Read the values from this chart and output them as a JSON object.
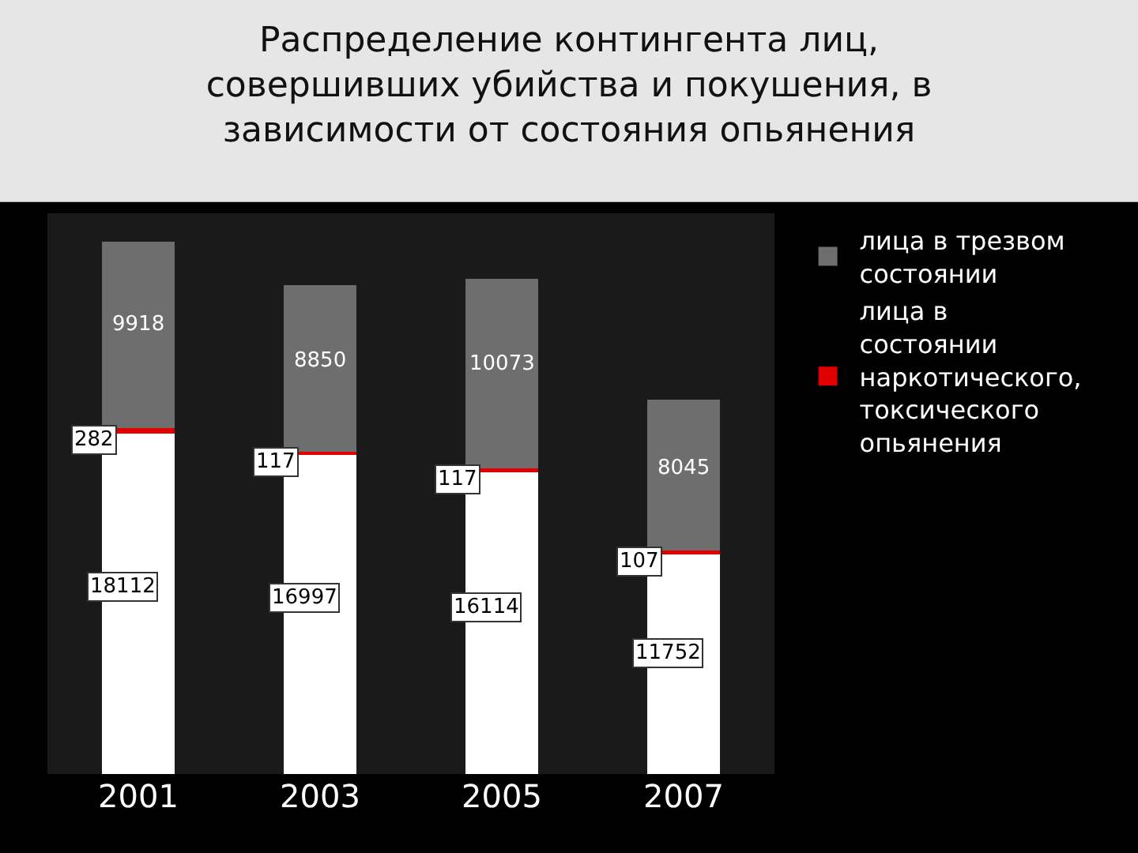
{
  "chart_data": {
    "type": "bar",
    "title": "Распределение контингента лиц, совершивших убийства и покушения, в зависимости от состояния опьянения",
    "categories": [
      "2001",
      "2003",
      "2005",
      "2007"
    ],
    "stacked": true,
    "data_labels": true,
    "tick_labels": "x",
    "legend": "right",
    "series": [
      {
        "color": "#ffffff",
        "values": [
          18112,
          16997,
          16114,
          11752
        ]
      },
      {
        "name": "лица в состоянии наркотического, токсического опьянения",
        "color": "#e00000",
        "values": [
          282,
          117,
          117,
          107
        ]
      },
      {
        "name": "лица в трезвом состоянии",
        "color": "#6e6e6e",
        "values": [
          9918,
          8850,
          10073,
          8045
        ]
      }
    ]
  }
}
